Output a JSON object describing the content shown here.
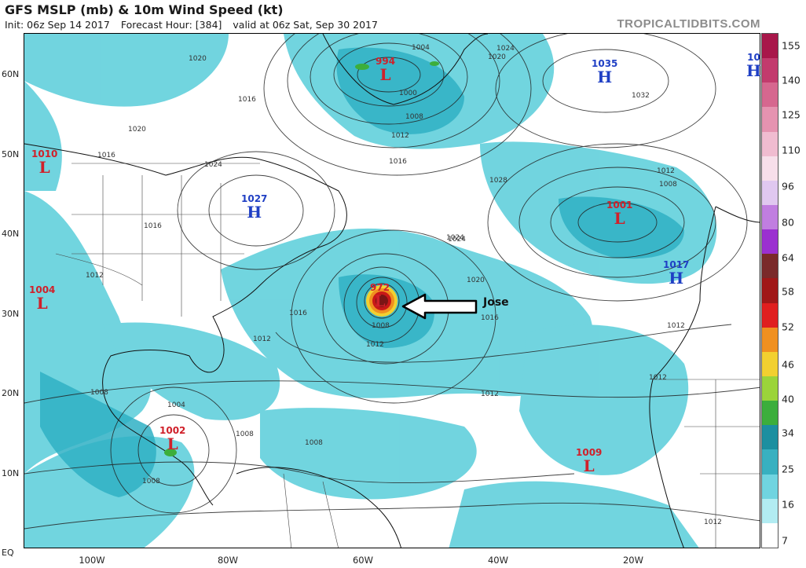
{
  "header": {
    "title": "GFS MSLP (mb) & 10m Wind Speed (kt)",
    "init": "Init: 06z Sep 14 2017",
    "forecast_hour": "Forecast Hour: [384]",
    "valid": "valid at 06z Sat, Sep 30 2017",
    "brand": "TROPICALTIDBITS.COM"
  },
  "axes": {
    "lat_labels": [
      "60N",
      "50N",
      "40N",
      "30N",
      "20N",
      "10N",
      "EQ"
    ],
    "lon_labels": [
      "100W",
      "80W",
      "60W",
      "40W",
      "20W"
    ]
  },
  "colorbar": {
    "units": "kt",
    "labels": [
      "155",
      "140",
      "125",
      "110",
      "96",
      "80",
      "64",
      "58",
      "52",
      "46",
      "40",
      "34",
      "25",
      "16",
      "7"
    ],
    "colors": [
      "#a8174a",
      "#c23b6d",
      "#d6678f",
      "#e593b0",
      "#f0bcd0",
      "#f7dfea",
      "#e0c8f0",
      "#c07ee0",
      "#9b30d0",
      "#7a2a2a",
      "#a01818",
      "#e01f1f",
      "#f09020",
      "#f2d030",
      "#9bd43a",
      "#3cae3c",
      "#1c8fa0",
      "#38b0c0",
      "#70d4e0",
      "#b2ecf2",
      "#ffffff"
    ]
  },
  "systems": [
    {
      "type": "L",
      "pressure": "994",
      "name": "low-994"
    },
    {
      "type": "H",
      "pressure": "1035",
      "name": "high-1035"
    },
    {
      "type": "H",
      "pressure": "10",
      "name": "high-edge"
    },
    {
      "type": "L",
      "pressure": "1010",
      "name": "low-1010"
    },
    {
      "type": "H",
      "pressure": "1027",
      "name": "high-1027"
    },
    {
      "type": "L",
      "pressure": "1001",
      "name": "low-1001"
    },
    {
      "type": "L",
      "pressure": "1004",
      "name": "low-1004"
    },
    {
      "type": "L",
      "pressure": "972",
      "name": "low-972-jose"
    },
    {
      "type": "H",
      "pressure": "1017",
      "name": "high-1017"
    },
    {
      "type": "L",
      "pressure": "1002",
      "name": "low-1002"
    },
    {
      "type": "L",
      "pressure": "1009",
      "name": "low-1009"
    }
  ],
  "annotation": {
    "label": "Jose"
  },
  "isobar_labels": [
    "1020",
    "1016",
    "1020",
    "1016",
    "1024",
    "1004",
    "1000",
    "1008",
    "1012",
    "1016",
    "1024",
    "1020",
    "1032",
    "1028",
    "1024",
    "1012",
    "1008",
    "1016",
    "1012",
    "1008",
    "1020",
    "1016",
    "1012",
    "1012",
    "1012",
    "1004",
    "1008",
    "1008",
    "1008",
    "1008",
    "1012",
    "1016",
    "1012",
    "1012",
    "1024"
  ]
}
